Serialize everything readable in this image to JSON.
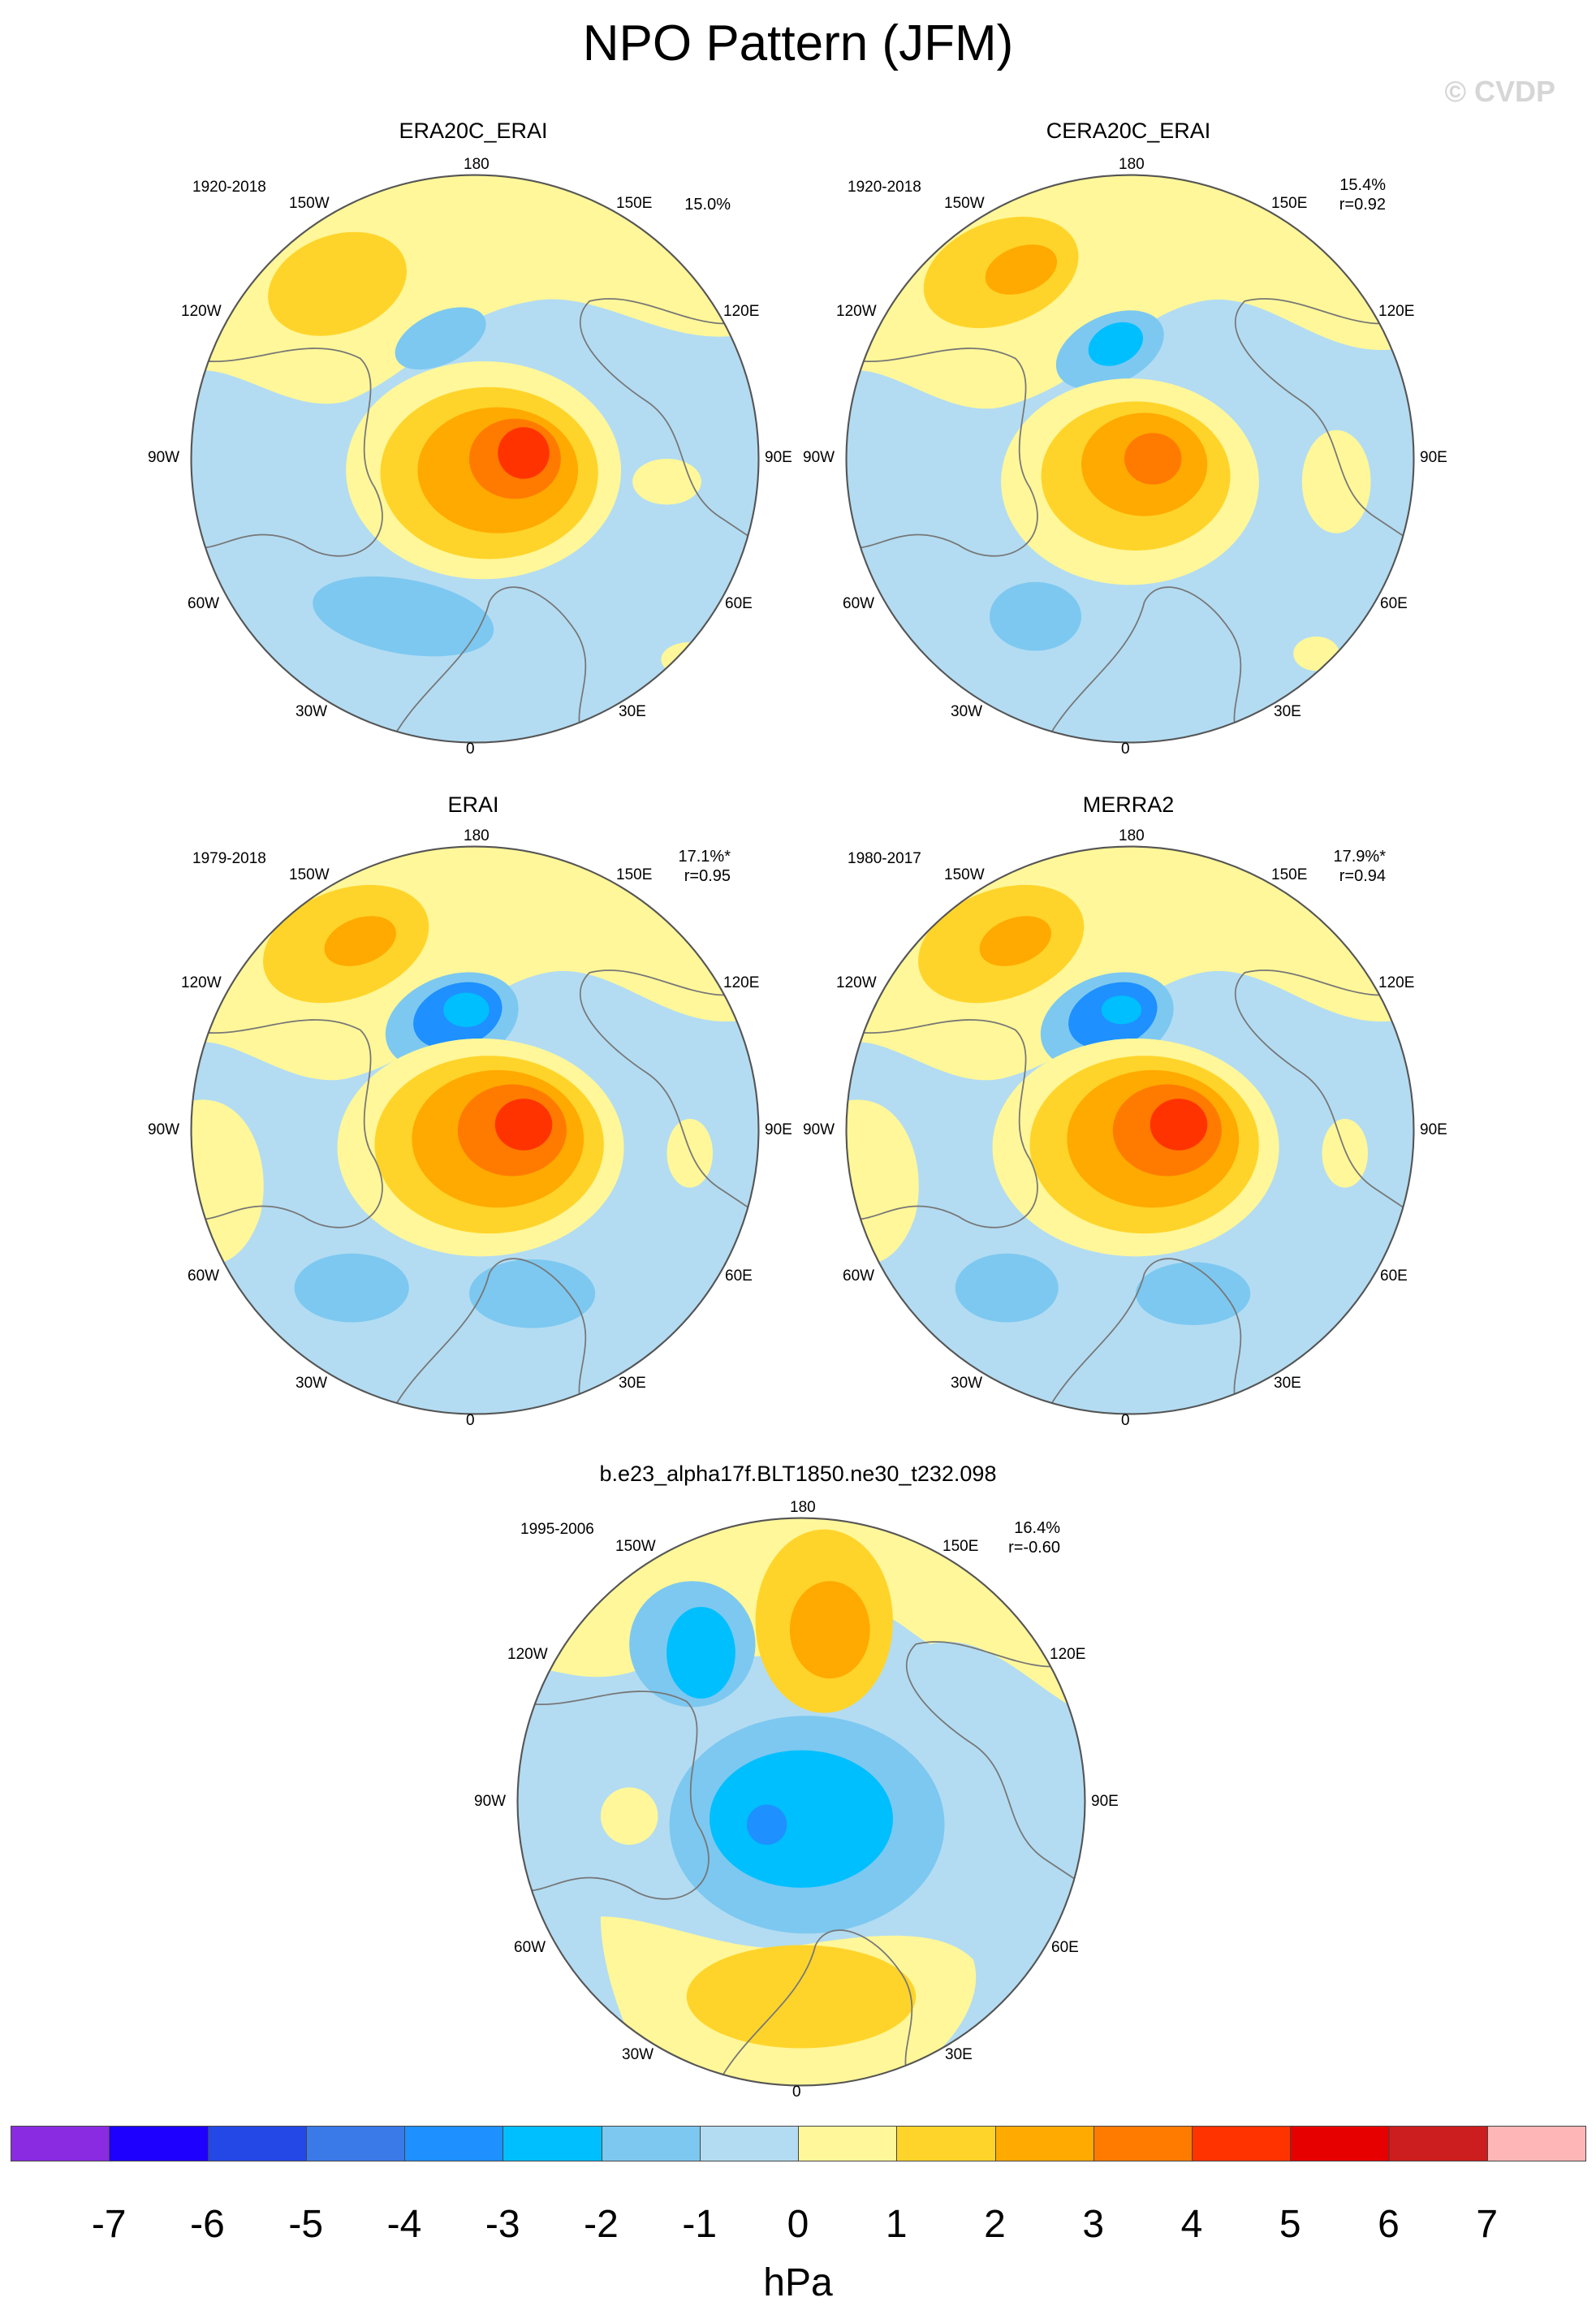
{
  "figure": {
    "title": "NPO Pattern (JFM)",
    "copyright": "© CVDP"
  },
  "panels": [
    {
      "name": "ERA20C_ERAI",
      "years": "1920-2018",
      "pct": "15.0%",
      "r": ""
    },
    {
      "name": "CERA20C_ERAI",
      "years": "1920-2018",
      "pct": "15.4%",
      "r": "r=0.92"
    },
    {
      "name": "ERAI",
      "years": "1979-2018",
      "pct": "17.1%*",
      "r": "r=0.95"
    },
    {
      "name": "MERRA2",
      "years": "1980-2017",
      "pct": "17.9%*",
      "r": "r=0.94"
    },
    {
      "name": "b.e23_alpha17f.BLT1850.ne30_t232.098",
      "years": "1995-2006",
      "pct": "16.4%",
      "r": "r=-0.60"
    }
  ],
  "longitude_labels": {
    "top": "180",
    "bottom": "0",
    "left": "90W",
    "right": "90E",
    "upper_left_1": "150W",
    "upper_left_2": "120W",
    "upper_right_1": "150E",
    "upper_right_2": "120E",
    "lower_left_1": "60W",
    "lower_left_2": "30W",
    "lower_right_1": "60E",
    "lower_right_2": "30E"
  },
  "colorbar": {
    "units": "hPa",
    "ticks": [
      "-7",
      "-6",
      "-5",
      "-4",
      "-3",
      "-2",
      "-1",
      "0",
      "1",
      "2",
      "3",
      "4",
      "5",
      "6",
      "7"
    ],
    "colors": [
      "#8a2be2",
      "#1e00ff",
      "#2448e6",
      "#3a7ae8",
      "#1e90ff",
      "#00bfff",
      "#7dc8f0",
      "#b3dcf2",
      "#fff799",
      "#ffd42a",
      "#ffaa00",
      "#ff7b00",
      "#ff3300",
      "#e60000",
      "#cc1e1e",
      "#ffb6b6"
    ]
  },
  "chart_data": [
    {
      "type": "heatmap",
      "title": "ERA20C_ERAI",
      "period": "1920-2018",
      "variance_explained": "15.0%",
      "pattern": {
        "max_hPa": 4,
        "min_hPa": -2
      }
    },
    {
      "type": "heatmap",
      "title": "CERA20C_ERAI",
      "period": "1920-2018",
      "variance_explained": "15.4%",
      "pattern_correlation": 0.92,
      "pattern": {
        "max_hPa": 3,
        "min_hPa": -2
      }
    },
    {
      "type": "heatmap",
      "title": "ERAI",
      "period": "1979-2018",
      "variance_explained": "17.1%*",
      "pattern_correlation": 0.95,
      "pattern": {
        "max_hPa": 4,
        "min_hPa": -3
      }
    },
    {
      "type": "heatmap",
      "title": "MERRA2",
      "period": "1980-2017",
      "variance_explained": "17.9%*",
      "pattern_correlation": 0.94,
      "pattern": {
        "max_hPa": 4,
        "min_hPa": -3
      }
    },
    {
      "type": "heatmap",
      "title": "b.e23_alpha17f.BLT1850.ne30_t232.098",
      "period": "1995-2006",
      "variance_explained": "16.4%",
      "pattern_correlation": -0.6,
      "pattern": {
        "max_hPa": 2,
        "min_hPa": -4
      }
    }
  ]
}
